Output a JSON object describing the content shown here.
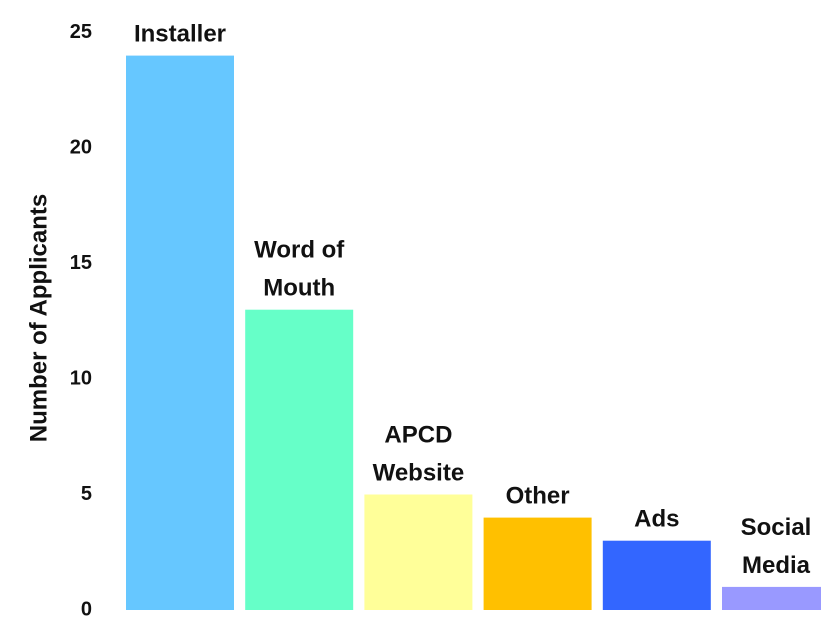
{
  "chart_data": {
    "type": "bar",
    "title": "",
    "xlabel": "",
    "ylabel": "Number of Applicants",
    "ylim": [
      0,
      25
    ],
    "yticks": [
      "0",
      "5",
      "10",
      "15",
      "20",
      "25"
    ],
    "grid": false,
    "legend": "none",
    "categories": [
      [
        "Installer"
      ],
      [
        "Word of",
        "Mouth"
      ],
      [
        "APCD",
        "Website"
      ],
      [
        "Other"
      ],
      [
        "Ads"
      ],
      [
        "Social",
        "Media"
      ]
    ],
    "values": [
      24,
      13,
      5,
      4,
      3,
      1
    ],
    "colors": [
      "#66C7FF",
      "#66FFC8",
      "#FFFF99",
      "#FFC000",
      "#3366FF",
      "#9999FF"
    ]
  }
}
